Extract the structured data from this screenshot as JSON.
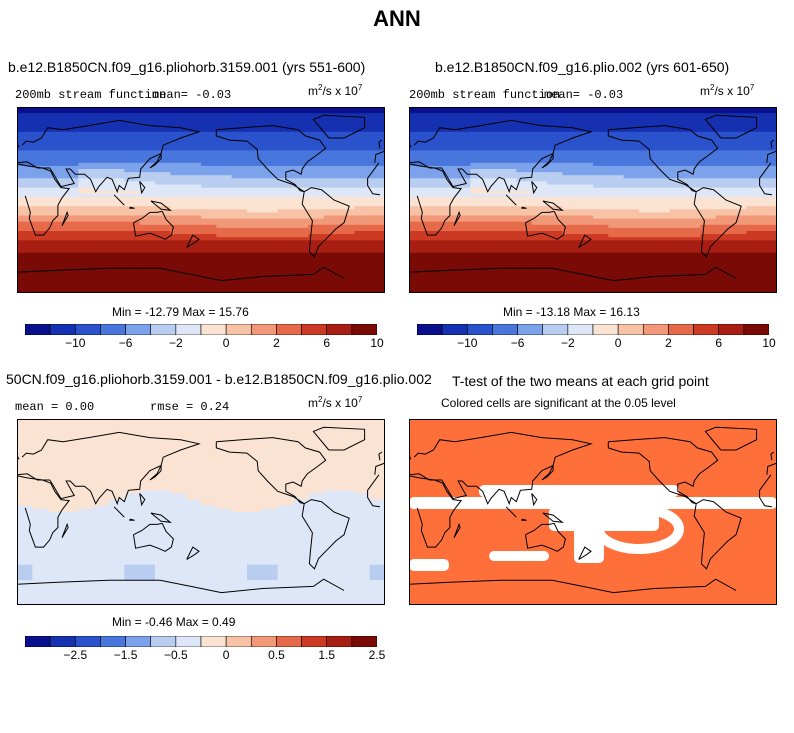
{
  "page": {
    "title": "ANN"
  },
  "colors": {
    "scale": [
      "#08108c",
      "#1530b0",
      "#2a52cc",
      "#4876dd",
      "#7ba2ea",
      "#b8cdf0",
      "#dde7f7",
      "#fbe3d3",
      "#f7c2a6",
      "#f19878",
      "#e66a4a",
      "#cc3a24",
      "#a81e12",
      "#7a0a06"
    ],
    "land": "#000000",
    "sig_orange": "#ff6f3a",
    "sig_white": "#ffffff"
  },
  "panels": {
    "p1": {
      "title": "b.e12.B1850CN.f09_g16.pliohorb.3159.001 (yrs 551-600)",
      "var_label": "200mb stream function",
      "mean_text": "mean=   -0.03",
      "units": {
        "base": "m",
        "exp1": "2",
        "mid": "/s x 10",
        "exp2": "7"
      },
      "min_max": "Min = -12.79  Max =  15.76"
    },
    "p2": {
      "title": "b.e12.B1850CN.f09_g16.plio.002 (yrs 601-650)",
      "var_label": "200mb stream function",
      "mean_text": "mean=   -0.03",
      "units": {
        "base": "m",
        "exp1": "2",
        "mid": "/s x 10",
        "exp2": "7"
      },
      "min_max": "Min = -13.18  Max =  16.13"
    },
    "p3": {
      "title": "50CN.f09_g16.pliohorb.3159.001 - b.e12.B1850CN.f09_g16.plio.002",
      "mean_text": "mean =    0.00",
      "rmse_text": "rmse =    0.24",
      "units": {
        "base": "m",
        "exp1": "2",
        "mid": "/s x 10",
        "exp2": "7"
      },
      "min_max": "Min = -0.46  Max =   0.49"
    },
    "p4": {
      "title": "T-test of the two means at each grid point",
      "subtitle": "Colored cells are significant at the 0.05 level"
    }
  },
  "colorbars": {
    "cb1": {
      "labels": [
        "−10",
        "−6",
        "−2",
        "0",
        "2",
        "6",
        "10"
      ]
    },
    "cb2": {
      "labels": [
        "−10",
        "−6",
        "−2",
        "0",
        "2",
        "6",
        "10"
      ]
    },
    "cb3": {
      "labels": [
        "−2.5",
        "−1.5",
        "−0.5",
        "0",
        "0.5",
        "1.5",
        "2.5"
      ]
    }
  },
  "chart_data": [
    {
      "type": "heatmap",
      "title": "b.e12.B1850CN.f09_g16.pliohorb.3159.001 (yrs 551-600)",
      "variable": "200mb stream function",
      "units": "m^2/s x 10^7",
      "mean": -0.03,
      "min": -12.79,
      "max": 15.76,
      "levels": [
        -12,
        -10,
        -8,
        -6,
        -4,
        -2,
        0,
        2,
        4,
        6,
        8,
        10,
        12
      ],
      "latitude_profile": {
        "lat": [
          90,
          75,
          60,
          45,
          30,
          20,
          10,
          0,
          -10,
          -20,
          -30,
          -45,
          -60,
          -75,
          -90
        ],
        "value": [
          -12.5,
          -11,
          -9.5,
          -7.5,
          -5,
          -3,
          -1,
          0.5,
          3,
          5.5,
          8,
          11,
          13,
          14.5,
          15
        ]
      }
    },
    {
      "type": "heatmap",
      "title": "b.e12.B1850CN.f09_g16.plio.002 (yrs 601-650)",
      "variable": "200mb stream function",
      "units": "m^2/s x 10^7",
      "mean": -0.03,
      "min": -13.18,
      "max": 16.13,
      "levels": [
        -12,
        -10,
        -8,
        -6,
        -4,
        -2,
        0,
        2,
        4,
        6,
        8,
        10,
        12
      ],
      "latitude_profile": {
        "lat": [
          90,
          75,
          60,
          45,
          30,
          20,
          10,
          0,
          -10,
          -20,
          -30,
          -45,
          -60,
          -75,
          -90
        ],
        "value": [
          -12.5,
          -11,
          -9.5,
          -7.5,
          -5,
          -3,
          -1,
          0.5,
          3,
          5.5,
          8,
          11,
          13,
          14.5,
          15
        ]
      }
    },
    {
      "type": "heatmap",
      "title": "50CN.f09_g16.pliohorb.3159.001 - b.e12.B1850CN.f09_g16.plio.002",
      "units": "m^2/s x 10^7",
      "mean": 0.0,
      "rmse": 0.24,
      "min": -0.46,
      "max": 0.49,
      "levels": [
        -3,
        -2.5,
        -2,
        -1.5,
        -1,
        -0.5,
        0,
        0.5,
        1,
        1.5,
        2,
        2.5,
        3
      ],
      "latitude_profile": {
        "lat": [
          90,
          60,
          30,
          15,
          0,
          -15,
          -30,
          -60,
          -90
        ],
        "value": [
          0.3,
          0.35,
          0.3,
          0.1,
          -0.2,
          -0.3,
          -0.25,
          -0.35,
          -0.2
        ]
      }
    },
    {
      "type": "heatmap",
      "title": "T-test of the two means at each grid point",
      "subtitle": "Colored cells are significant at the 0.05 level",
      "significance_level": 0.05
    }
  ]
}
